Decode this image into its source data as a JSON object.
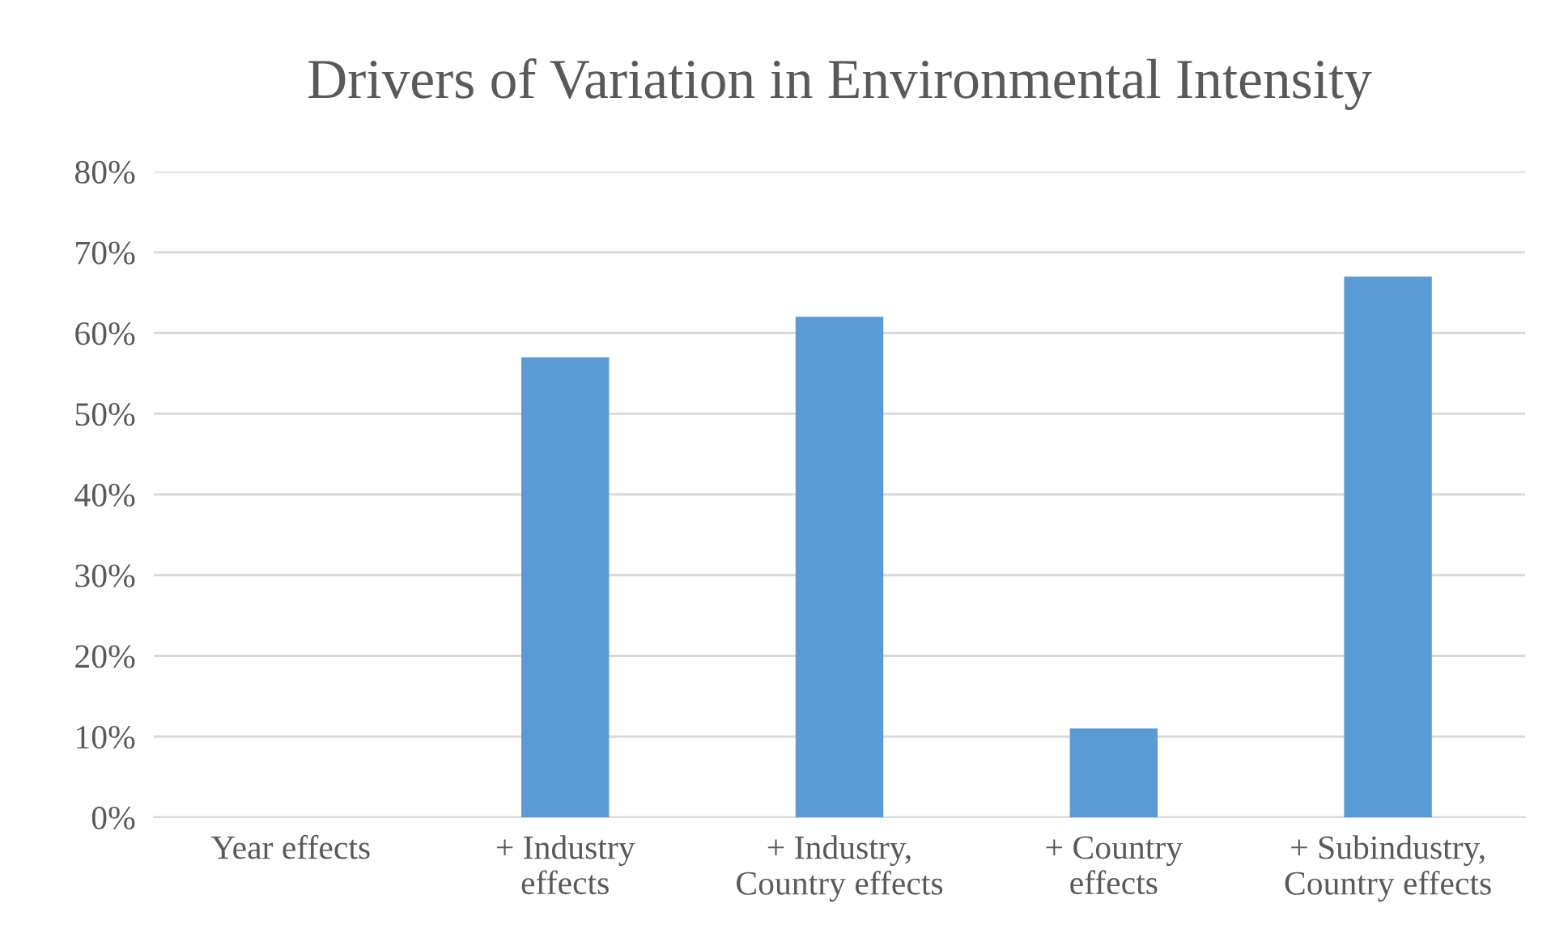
{
  "chart_data": {
    "type": "bar",
    "title": "Drivers of Variation in Environmental Intensity",
    "categories": [
      "Year effects",
      "+ Industry\neffects",
      "+ Industry,\nCountry effects",
      "+ Country\neffects",
      "+ Subindustry,\nCountry effects"
    ],
    "values": [
      0,
      57,
      62,
      11,
      67
    ],
    "color": "#5b9bd5",
    "ylim": [
      0,
      80
    ],
    "yticks": [
      {
        "value": 0,
        "label": "0%"
      },
      {
        "value": 10,
        "label": "10%"
      },
      {
        "value": 20,
        "label": "20%"
      },
      {
        "value": 30,
        "label": "30%"
      },
      {
        "value": 40,
        "label": "40%"
      },
      {
        "value": 50,
        "label": "50%"
      },
      {
        "value": 60,
        "label": "60%"
      },
      {
        "value": 70,
        "label": "70%"
      },
      {
        "value": 80,
        "label": "80%"
      }
    ],
    "grid": "y"
  }
}
